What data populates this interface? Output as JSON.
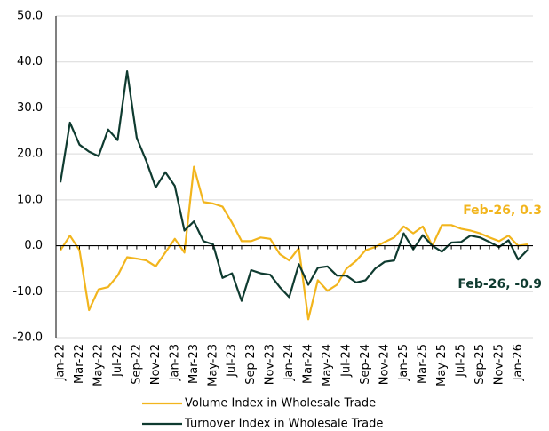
{
  "chart_data": {
    "type": "line",
    "categories": [
      "Jan-22",
      null,
      "Mar-22",
      null,
      "May-22",
      null,
      "Jul-22",
      null,
      "Sep-22",
      null,
      "Nov-22",
      null,
      "Jan-23",
      null,
      "Mar-23",
      null,
      "May-23",
      null,
      "Jul-23",
      null,
      "Sep-23",
      null,
      "Nov-23",
      null,
      "Jan-24",
      null,
      "Mar-24",
      null,
      "May-24",
      null,
      "Jul-24",
      null,
      "Sep-24",
      null,
      "Nov-24",
      null,
      "Jan-25",
      null,
      "Mar-25",
      null,
      "May-25",
      null,
      "Jul-25",
      null,
      "Sep-25",
      null,
      "Nov-25",
      null,
      "Jan-26",
      null
    ],
    "series": [
      {
        "name": "Volume Index in Wholesale Trade",
        "color": "#f2b51d",
        "values": [
          -1,
          2.2,
          -1,
          -14,
          -9.5,
          -9,
          -6.5,
          -2.5,
          -2.8,
          -3.2,
          -4.5,
          -1.5,
          1.5,
          -1.5,
          17.2,
          9.5,
          9.2,
          8.5,
          5,
          1,
          1,
          1.8,
          1.5,
          -1.8,
          -3.2,
          -0.5,
          -16,
          -7.5,
          -9.8,
          -8.5,
          -5,
          -3.3,
          -1,
          -0.3,
          0.8,
          1.8,
          4.2,
          2.7,
          4.2,
          0,
          4.5,
          4.5,
          3.7,
          3.3,
          2.7,
          1.8,
          1,
          2.2,
          0,
          0.3
        ]
      },
      {
        "name": "Turnover Index in Wholesale Trade",
        "color": "#0f3b30",
        "values": [
          13.8,
          26.8,
          22,
          20.5,
          19.5,
          25.3,
          23,
          38,
          23.5,
          18.5,
          12.7,
          16,
          13,
          3.3,
          5.3,
          1,
          0.3,
          -7,
          -6,
          -12,
          -5.3,
          -6,
          -6.3,
          -9,
          -11.2,
          -4,
          -8.5,
          -4.8,
          -4.5,
          -6.5,
          -6.5,
          -8,
          -7.5,
          -5,
          -3.5,
          -3.2,
          2.7,
          -0.8,
          2.3,
          0,
          -1.3,
          0.7,
          0.8,
          2.2,
          1.8,
          0.8,
          -0.3,
          1.2,
          -3,
          -0.9
        ]
      }
    ],
    "annotations": [
      {
        "text": "Feb-26, 0.3",
        "color": "#f2b51d"
      },
      {
        "text": "Feb-26, -0.9",
        "color": "#0f3b30"
      }
    ],
    "ylim": [
      -20,
      50
    ],
    "yticks": [
      {
        "value": -20,
        "label": "-20.0"
      },
      {
        "value": -10,
        "label": "-10.0"
      },
      {
        "value": 0,
        "label": "0.0"
      },
      {
        "value": 10,
        "label": "10.0"
      },
      {
        "value": 20,
        "label": "20.0"
      },
      {
        "value": 30,
        "label": "30.0"
      },
      {
        "value": 40,
        "label": "40.0"
      },
      {
        "value": 50,
        "label": "50.0"
      }
    ],
    "grid": true,
    "legend": "bottom"
  }
}
